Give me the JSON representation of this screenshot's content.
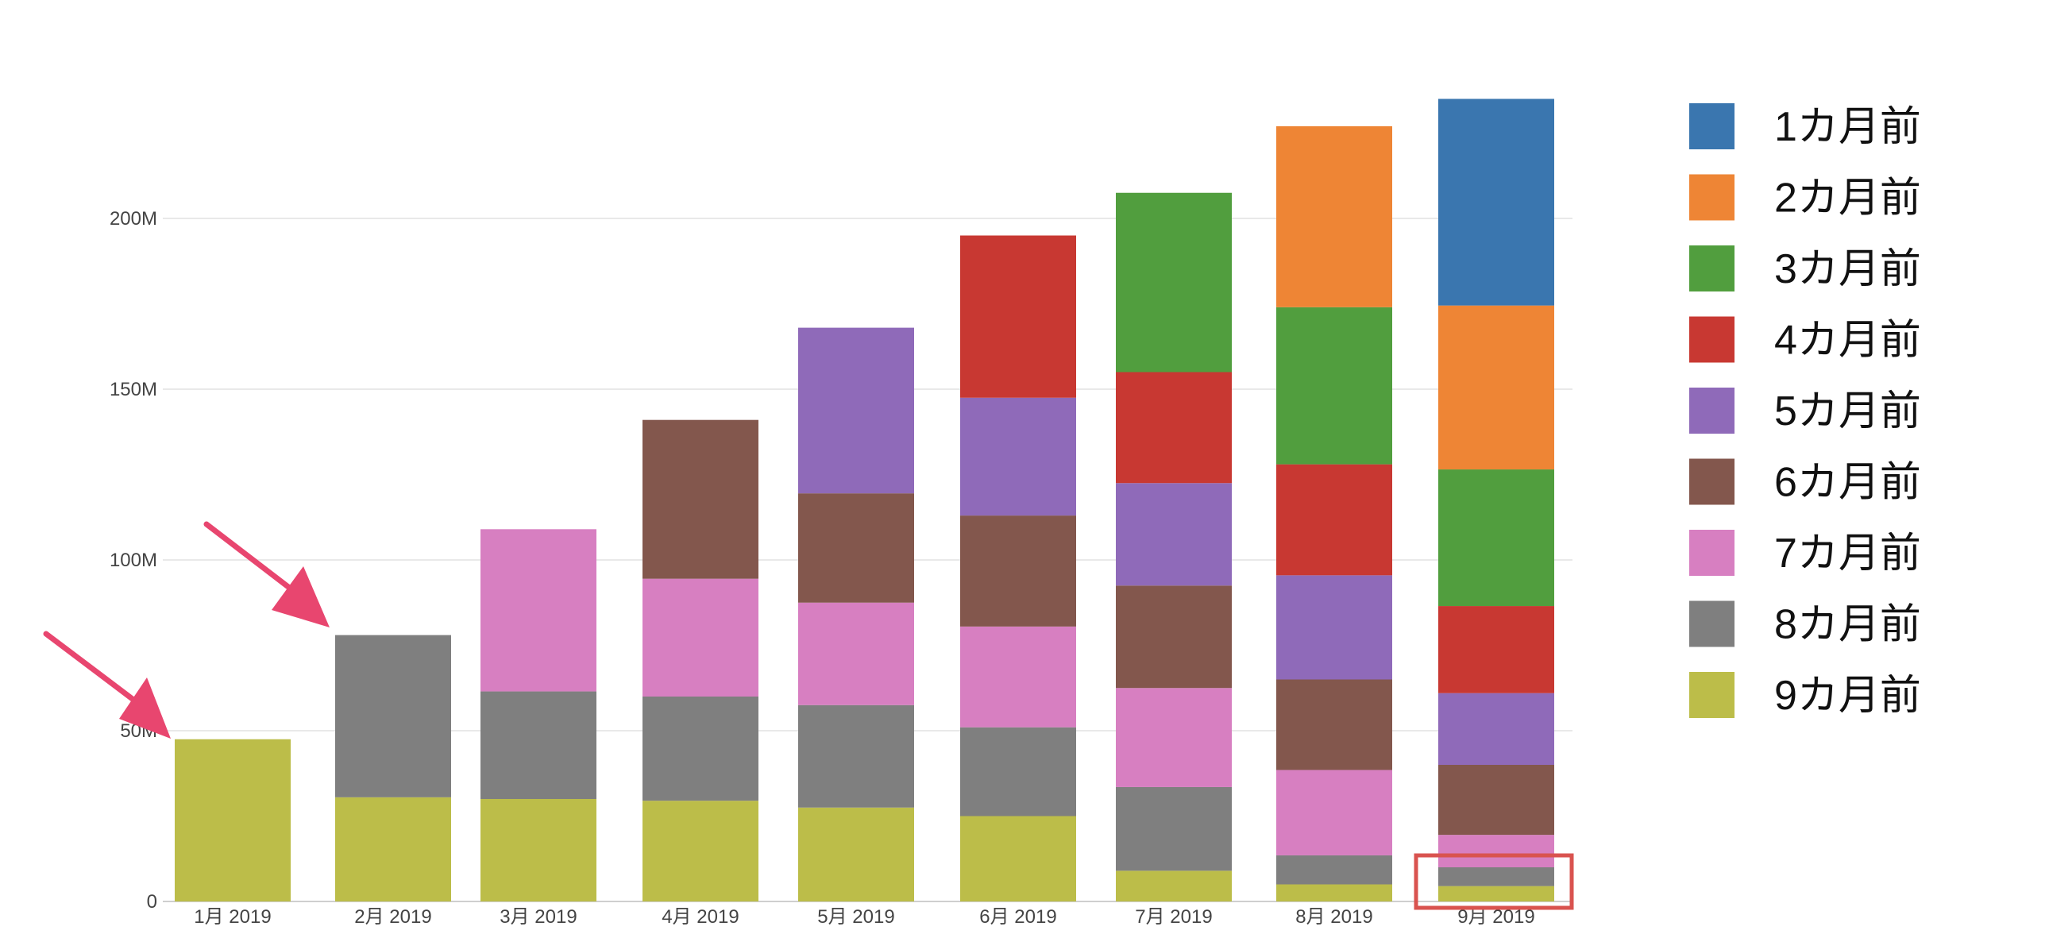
{
  "chart_data": {
    "type": "bar",
    "stacked": true,
    "title": "",
    "xlabel": "",
    "ylabel": "",
    "categories": [
      "1月 2019",
      "2月 2019",
      "3月 2019",
      "4月 2019",
      "5月 2019",
      "6月 2019",
      "7月 2019",
      "8月 2019",
      "9月 2019"
    ],
    "yticks": [
      {
        "value": 0,
        "label": "0"
      },
      {
        "value": 50000000,
        "label": "50M"
      },
      {
        "value": 100000000,
        "label": "100M"
      },
      {
        "value": 150000000,
        "label": "150M"
      },
      {
        "value": 200000000,
        "label": "200M"
      }
    ],
    "ylim": [
      0,
      235000000
    ],
    "grid": true,
    "legend_position": "right",
    "series": [
      {
        "name": "9カ月前",
        "color": "#bcbd49",
        "values": [
          47500000,
          30500000,
          30000000,
          29500000,
          27500000,
          25000000,
          9000000,
          5000000,
          4500000
        ]
      },
      {
        "name": "8カ月前",
        "color": "#7f7f7f",
        "values": [
          null,
          47500000,
          31500000,
          30500000,
          30000000,
          26000000,
          24500000,
          8500000,
          5500000
        ]
      },
      {
        "name": "7カ月前",
        "color": "#d77fc1",
        "values": [
          null,
          null,
          47500000,
          34500000,
          30000000,
          29500000,
          29000000,
          25000000,
          9500000
        ]
      },
      {
        "name": "6カ月前",
        "color": "#83574d",
        "values": [
          null,
          null,
          null,
          46500000,
          32000000,
          32500000,
          30000000,
          26500000,
          20500000
        ]
      },
      {
        "name": "5カ月前",
        "color": "#8f6ab9",
        "values": [
          null,
          null,
          null,
          null,
          48500000,
          34500000,
          30000000,
          30500000,
          21000000
        ]
      },
      {
        "name": "4カ月前",
        "color": "#c83832",
        "values": [
          null,
          null,
          null,
          null,
          null,
          47500000,
          32500000,
          32500000,
          25500000
        ]
      },
      {
        "name": "3カ月前",
        "color": "#519e3e",
        "values": [
          null,
          null,
          null,
          null,
          null,
          null,
          52500000,
          46000000,
          40000000
        ]
      },
      {
        "name": "2カ月前",
        "color": "#ee8535",
        "values": [
          null,
          null,
          null,
          null,
          null,
          null,
          null,
          53000000,
          48000000
        ]
      },
      {
        "name": "1カ月前",
        "color": "#3a76af",
        "values": [
          null,
          null,
          null,
          null,
          null,
          null,
          null,
          null,
          60500000
        ]
      }
    ],
    "legend_order": [
      "1カ月前",
      "2カ月前",
      "3カ月前",
      "4カ月前",
      "5カ月前",
      "6カ月前",
      "7カ月前",
      "8カ月前",
      "9カ月前"
    ],
    "annotations": [
      {
        "type": "arrow",
        "color": "#e8466f",
        "target_category": "1月 2019"
      },
      {
        "type": "arrow",
        "color": "#e8466f",
        "target_category": "2月 2019"
      },
      {
        "type": "highlight-box",
        "color": "#d9534f",
        "target_category": "9月 2019"
      }
    ]
  }
}
